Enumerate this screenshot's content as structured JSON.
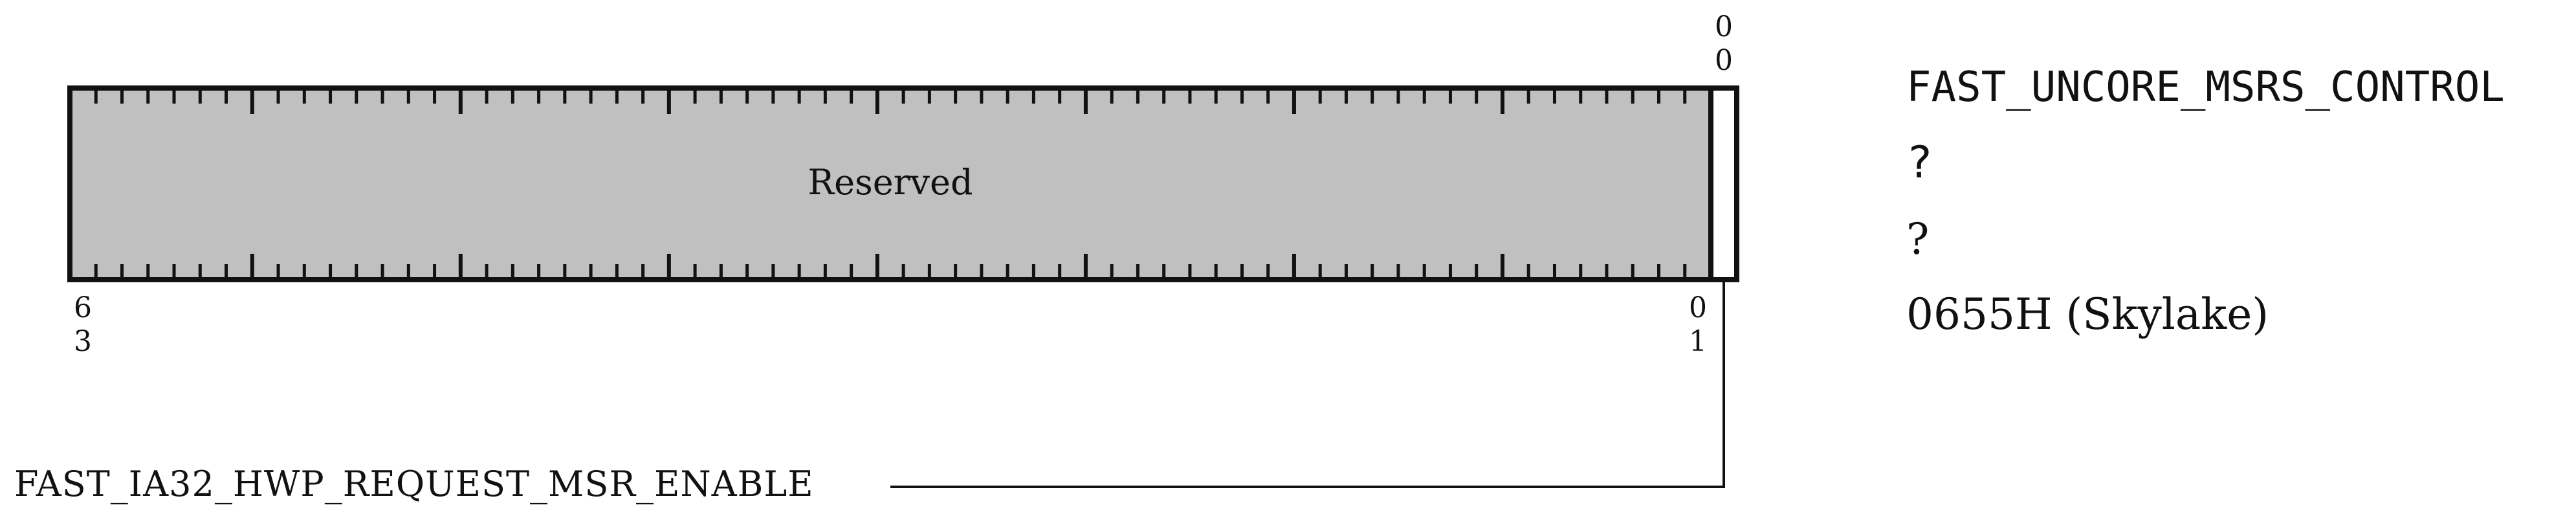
{
  "register": {
    "name": "FAST_UNCORE_MSRS_CONTROL",
    "line2": "?",
    "line3": "?",
    "address": "0655H (Skylake)"
  },
  "fields": {
    "reserved": {
      "label": "Reserved",
      "msb_tens": "6",
      "msb_ones": "3",
      "lsb_tens": "0",
      "lsb_ones": "1"
    },
    "enable_bit": {
      "label": "FAST_IA32_HWP_REQUEST_MSR_ENABLE",
      "bit_tens": "0",
      "bit_ones": "0"
    }
  },
  "colors": {
    "reserved_fill": "#c0c0c0",
    "stroke": "#111111",
    "field_fill": "#ffffff"
  }
}
